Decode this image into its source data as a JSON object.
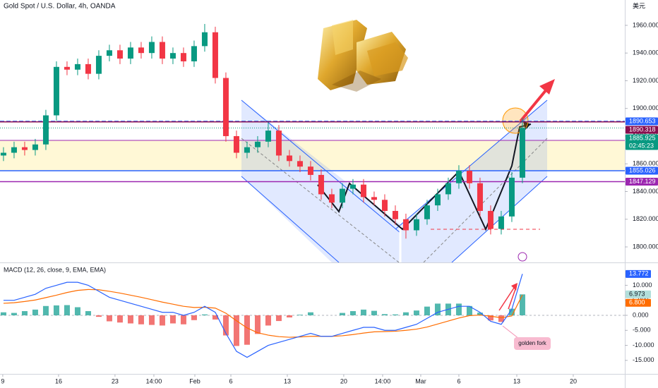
{
  "chart_data": {
    "type": "candlestick",
    "title": "Gold Spot / U.S. Dollar, 4h, OANDA",
    "currency": "美元",
    "up_color": "#089981",
    "down_color": "#f23645",
    "xlim": [
      -0.33,
      58.67
    ],
    "xticks": [
      {
        "value": -0.07,
        "label": "9"
      },
      {
        "value": 5.2,
        "label": "16"
      },
      {
        "value": 10.53,
        "label": "23"
      },
      {
        "value": 14.2,
        "label": "14:00"
      },
      {
        "value": 18.07,
        "label": "Feb"
      },
      {
        "value": 21.47,
        "label": "6"
      },
      {
        "value": 26.8,
        "label": "13"
      },
      {
        "value": 32.13,
        "label": "20"
      },
      {
        "value": 35.8,
        "label": "14:00"
      },
      {
        "value": 39.4,
        "label": "Mar"
      },
      {
        "value": 43,
        "label": "6"
      },
      {
        "value": 48.47,
        "label": "13"
      },
      {
        "value": 53.8,
        "label": "20"
      }
    ],
    "ylim": [
      1788.8,
      1978.3
    ],
    "yticks": [
      {
        "value": 1800,
        "label": "1800.000"
      },
      {
        "value": 1820,
        "label": "1820.000"
      },
      {
        "value": 1840,
        "label": "1840.000"
      },
      {
        "value": 1860,
        "label": "1860.000"
      },
      {
        "value": 1880,
        "label": "1880.000"
      },
      {
        "value": 1900,
        "label": "1900.000"
      },
      {
        "value": 1920,
        "label": "1920.000"
      },
      {
        "value": 1940,
        "label": "1940.000"
      },
      {
        "value": 1960,
        "label": "1960.000"
      }
    ],
    "open": [
      1866,
      1868,
      1872,
      1870,
      1874,
      1895,
      1930,
      1928,
      1932,
      1925,
      1938,
      1942,
      1936,
      1944,
      1940,
      1948,
      1936,
      1940,
      1934,
      1945,
      1955,
      1922,
      1880,
      1868,
      1872,
      1876,
      1884,
      1866,
      1862,
      1858,
      1852,
      1838,
      1832,
      1842,
      1845,
      1836,
      1834,
      1826,
      1820,
      1812,
      1820,
      1830,
      1838,
      1846,
      1855,
      1846,
      1826,
      1813,
      1822,
      1850
    ],
    "high": [
      1872,
      1876,
      1876,
      1878,
      1899,
      1934,
      1934,
      1936,
      1936,
      1942,
      1946,
      1946,
      1948,
      1948,
      1952,
      1952,
      1944,
      1944,
      1949,
      1961,
      1959,
      1926,
      1884,
      1876,
      1880,
      1890,
      1888,
      1870,
      1866,
      1862,
      1856,
      1842,
      1846,
      1849,
      1849,
      1840,
      1838,
      1830,
      1824,
      1824,
      1834,
      1842,
      1850,
      1859,
      1859,
      1850,
      1830,
      1826,
      1854,
      1893
    ],
    "low": [
      1862,
      1864,
      1866,
      1866,
      1870,
      1891,
      1924,
      1924,
      1921,
      1921,
      1934,
      1932,
      1932,
      1936,
      1936,
      1932,
      1932,
      1930,
      1930,
      1941,
      1918,
      1876,
      1864,
      1864,
      1868,
      1872,
      1862,
      1858,
      1854,
      1848,
      1834,
      1828,
      1828,
      1838,
      1832,
      1830,
      1822,
      1816,
      1806,
      1808,
      1816,
      1826,
      1834,
      1842,
      1842,
      1822,
      1809,
      1809,
      1818,
      1846
    ],
    "close": [
      1868,
      1872,
      1870,
      1874,
      1895,
      1930,
      1928,
      1932,
      1925,
      1938,
      1942,
      1936,
      1944,
      1940,
      1948,
      1936,
      1940,
      1934,
      1945,
      1955,
      1922,
      1880,
      1868,
      1872,
      1876,
      1884,
      1866,
      1862,
      1858,
      1852,
      1838,
      1832,
      1842,
      1845,
      1836,
      1834,
      1826,
      1820,
      1812,
      1820,
      1830,
      1838,
      1846,
      1855,
      1846,
      1826,
      1813,
      1822,
      1850,
      1885.925
    ],
    "price_lines": [
      {
        "value": 1890.653,
        "color": "#2962ff"
      },
      {
        "value": 1890.318,
        "color": "#880e4f"
      },
      {
        "value": 1885.925,
        "color": "#089981",
        "countdown": "02:45:23"
      },
      {
        "value": 1855.026,
        "color": "#2962ff"
      },
      {
        "value": 1847.129,
        "color": "#9c27b0"
      }
    ],
    "macd": {
      "title": "MACD (12, 26, close, 9, EMA, EMA)",
      "y2lim": [
        -19.5,
        17.14
      ],
      "y2ticks": [
        {
          "value": 10,
          "label": "10.000"
        },
        {
          "value": 5,
          "label": "5.000"
        },
        {
          "value": 0,
          "label": "0.000"
        },
        {
          "value": -5,
          "label": "-5.000"
        },
        {
          "value": -10,
          "label": "-10.000"
        },
        {
          "value": -15,
          "label": "-15.000"
        }
      ],
      "macd_line": {
        "color": "#2962ff",
        "values": [
          5,
          5,
          6,
          7,
          9,
          10,
          11,
          11,
          10,
          8,
          6,
          5,
          4,
          3,
          2,
          1,
          1,
          0,
          1,
          3,
          1,
          -6,
          -12,
          -14,
          -12,
          -10,
          -9,
          -8,
          -7,
          -6,
          -7,
          -7,
          -6,
          -5,
          -4,
          -4,
          -5,
          -5,
          -4,
          -3,
          -1,
          1,
          2,
          3,
          3,
          1,
          -2,
          -3,
          2,
          13.772
        ]
      },
      "signal_line": {
        "color": "#ff6d00",
        "values": [
          4,
          4.2,
          4.6,
          5.1,
          5.9,
          6.7,
          7.6,
          8.3,
          8.6,
          8.5,
          8,
          7.4,
          6.7,
          6,
          5.2,
          4.4,
          3.7,
          3,
          2.6,
          2.7,
          2.4,
          0.7,
          -1.8,
          -4.2,
          -5.8,
          -6.6,
          -7.1,
          -7.3,
          -7.2,
          -7,
          -7,
          -7,
          -6.8,
          -6.4,
          -5.9,
          -5.5,
          -5.4,
          -5.3,
          -5,
          -4.6,
          -3.9,
          -2.9,
          -1.9,
          -0.9,
          -0.1,
          0.1,
          -0.3,
          -0.8,
          -0.2,
          6.8
        ],
        "last_label": "6.800"
      },
      "histogram": {
        "up_color": "#26a69a",
        "down_color": "#ef5350",
        "values": [
          1,
          0.8,
          1.4,
          1.9,
          3.1,
          3.3,
          3.4,
          2.7,
          1.4,
          -0.5,
          -2,
          -2.4,
          -2.7,
          -3,
          -3.2,
          -3.4,
          -2.7,
          -3,
          -1.6,
          0.3,
          -1.4,
          -6.7,
          -10.2,
          -9.8,
          -6.2,
          -3.4,
          -1.9,
          -0.7,
          0.2,
          1,
          0,
          0,
          0.8,
          1.4,
          1.9,
          1.5,
          0.4,
          0.3,
          1,
          1.6,
          2.9,
          3.9,
          3.9,
          3.9,
          3.1,
          0.9,
          -1.7,
          -2.2,
          2.2,
          6.973
        ]
      },
      "annotation": "golden fork"
    }
  }
}
